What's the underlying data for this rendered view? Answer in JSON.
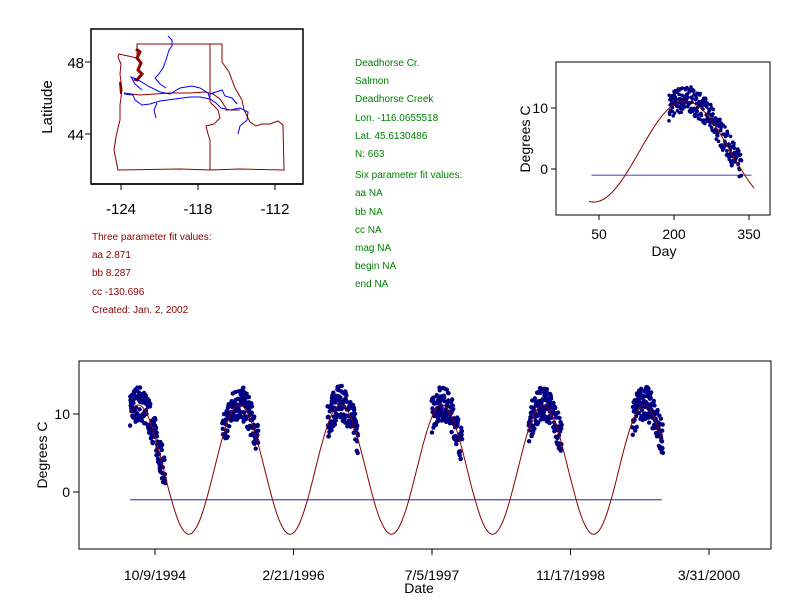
{
  "site_info": {
    "lines": [
      "Deadhorse Cr.",
      "Salmon",
      "Deadhorse Creek",
      "Lon. -116.0655518",
      "Lat. 45.6130486",
      "N: 663"
    ],
    "six_param_title": "Six parameter fit values:",
    "six_param": [
      "aa NA",
      "bb NA",
      "cc NA",
      "mag NA",
      "begin NA",
      "end NA"
    ]
  },
  "three_param": {
    "title": "Three parameter fit values:",
    "lines": [
      "aa 2.871",
      "bb 8.287",
      "cc -130.696",
      "Created:   Jan. 2, 2002"
    ]
  },
  "colors": {
    "fit": "#8b0000",
    "points": "#000080",
    "rivers": "#0000ff",
    "borders": "#8b0000",
    "site_text": "#008000"
  },
  "chart_data": [
    {
      "type": "map",
      "ylabel": "Latitude",
      "xticks": [
        "-124",
        "-118",
        "-112"
      ],
      "yticks": [
        "48",
        "44"
      ],
      "xlim": [
        -126.3,
        -109.8
      ],
      "ylim": [
        41.2,
        49.8
      ]
    },
    {
      "type": "scatter",
      "xlabel": "Day",
      "ylabel": "Degrees C",
      "xticks": [
        "50",
        "200",
        "350"
      ],
      "yticks": [
        "10",
        "0"
      ],
      "xlim": [
        -35,
        390
      ],
      "ylim": [
        -7.5,
        17.5
      ],
      "fit": {
        "aa": 2.871,
        "bb": 8.287,
        "cc": -130.696,
        "day_range": [
          30,
          360
        ]
      },
      "reference_line": {
        "y": -1,
        "x_range": [
          35,
          355
        ]
      },
      "observation_day_range": [
        190,
        335
      ],
      "n": 663
    },
    {
      "type": "scatter",
      "xlabel": "Date",
      "ylabel": "Degrees C",
      "xticks": [
        "10/9/1994",
        "2/21/1996",
        "7/5/1997",
        "11/17/1998",
        "3/31/2000"
      ],
      "yticks": [
        "10",
        "0"
      ],
      "xlim_days_from_1994_10_09": [
        -275,
        2220
      ],
      "ylim": [
        -7.3,
        16.8
      ],
      "reference_line": {
        "y": -1,
        "x_range_days": [
          -90,
          1830
        ]
      },
      "seasons": [
        {
          "year": 1994,
          "doy_range": [
            192,
            320
          ]
        },
        {
          "year": 1995,
          "doy_range": [
            160,
            290
          ]
        },
        {
          "year": 1996,
          "doy_range": [
            175,
            285
          ]
        },
        {
          "year": 1997,
          "doy_range": [
            185,
            295
          ]
        },
        {
          "year": 1998,
          "doy_range": [
            170,
            290
          ]
        },
        {
          "year": 1999,
          "doy_range": [
            180,
            290
          ]
        }
      ]
    }
  ]
}
